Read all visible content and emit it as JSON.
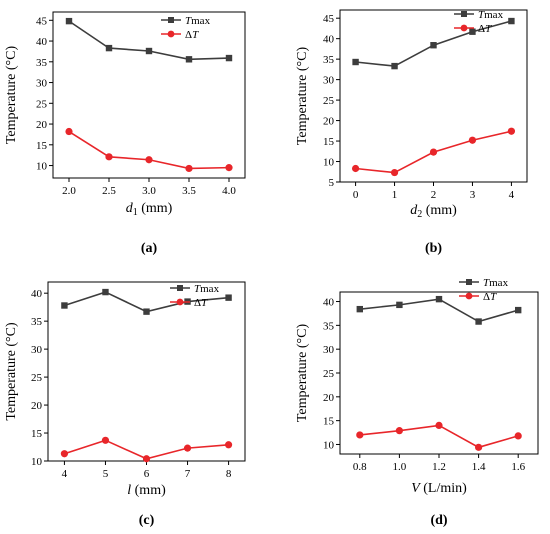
{
  "colors": {
    "tmax": "#3d3d3d",
    "dt": "#e8262a"
  },
  "chart_data": [
    {
      "type": "line",
      "panel_label": "(a)",
      "xlabel_main": "d",
      "xlabel_sub": "1",
      "xlabel_unit": " (mm)",
      "ylabel": "Temperature (°C)",
      "x": [
        2.0,
        2.5,
        3.0,
        3.5,
        4.0
      ],
      "xticks": [
        "2.0",
        "2.5",
        "3.0",
        "3.5",
        "4.0"
      ],
      "xlim": [
        1.8,
        4.2
      ],
      "ylim": [
        7,
        47
      ],
      "yticks": [
        10,
        15,
        20,
        25,
        30,
        35,
        40,
        45
      ],
      "series": [
        {
          "name": "Tmax",
          "legend_italic": "T",
          "legend_rest": "max",
          "values": [
            44.8,
            38.3,
            37.6,
            35.6,
            35.9
          ]
        },
        {
          "name": "ΔT",
          "legend_italic": "T",
          "legend_rest": "Δ",
          "values": [
            18.2,
            12.1,
            11.4,
            9.3,
            9.5
          ]
        }
      ]
    },
    {
      "type": "line",
      "panel_label": "(b)",
      "xlabel_main": "d",
      "xlabel_sub": "2",
      "xlabel_unit": " (mm)",
      "ylabel": "Temperature (°C)",
      "x": [
        0,
        1,
        2,
        3,
        4
      ],
      "xticks": [
        "0",
        "1",
        "2",
        "3",
        "4"
      ],
      "xlim": [
        -0.4,
        4.4
      ],
      "ylim": [
        5,
        47
      ],
      "yticks": [
        5,
        10,
        15,
        20,
        25,
        30,
        35,
        40,
        45
      ],
      "series": [
        {
          "name": "Tmax",
          "legend_italic": "T",
          "legend_rest": "max",
          "values": [
            34.3,
            33.3,
            38.4,
            41.7,
            44.3
          ]
        },
        {
          "name": "ΔT",
          "legend_italic": "T",
          "legend_rest": "Δ",
          "values": [
            8.3,
            7.3,
            12.3,
            15.2,
            17.4
          ]
        }
      ]
    },
    {
      "type": "line",
      "panel_label": "(c)",
      "xlabel_main": "l",
      "xlabel_sub": "",
      "xlabel_unit": " (mm)",
      "ylabel": "Temperature (°C)",
      "x": [
        4,
        5,
        6,
        7,
        8
      ],
      "xticks": [
        "4",
        "5",
        "6",
        "7",
        "8"
      ],
      "xlim": [
        3.6,
        8.4
      ],
      "ylim": [
        10,
        42
      ],
      "yticks": [
        10,
        15,
        20,
        25,
        30,
        35,
        40
      ],
      "series": [
        {
          "name": "Tmax",
          "legend_italic": "T",
          "legend_rest": "max",
          "values": [
            37.8,
            40.2,
            36.7,
            38.5,
            39.2
          ]
        },
        {
          "name": "ΔT",
          "legend_italic": "T",
          "legend_rest": "Δ",
          "values": [
            11.3,
            13.7,
            10.4,
            12.3,
            12.9
          ]
        }
      ]
    },
    {
      "type": "line",
      "panel_label": "(d)",
      "xlabel_main": "V",
      "xlabel_sub": "",
      "xlabel_unit": " (L/min)",
      "ylabel": "Temperature (°C)",
      "x": [
        0.8,
        1.0,
        1.2,
        1.4,
        1.6
      ],
      "xticks": [
        "0.8",
        "1.0",
        "1.2",
        "1.4",
        "1.6"
      ],
      "xlim": [
        0.7,
        1.7
      ],
      "ylim": [
        8,
        42
      ],
      "yticks": [
        10,
        15,
        20,
        25,
        30,
        35,
        40
      ],
      "series": [
        {
          "name": "Tmax",
          "legend_italic": "T",
          "legend_rest": "max",
          "values": [
            38.4,
            39.3,
            40.5,
            35.8,
            38.2
          ]
        },
        {
          "name": "ΔT",
          "legend_italic": "T",
          "legend_rest": "Δ",
          "values": [
            12.0,
            12.9,
            14.0,
            9.4,
            11.8
          ]
        }
      ]
    }
  ]
}
